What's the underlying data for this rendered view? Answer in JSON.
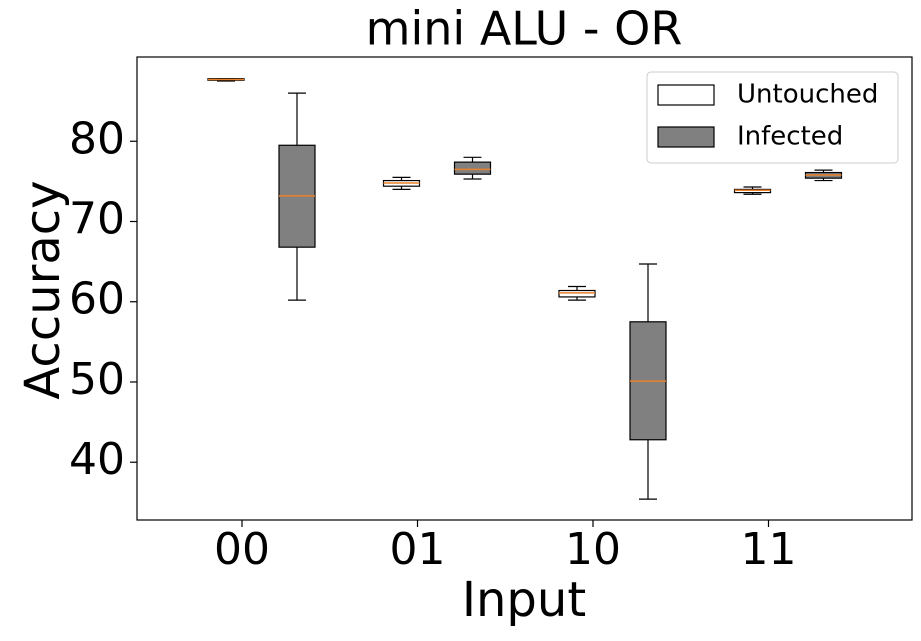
{
  "chart_data": {
    "type": "box",
    "title": "mini ALU - OR",
    "x_label": "Input",
    "y_label": "Accuracy",
    "categories": [
      "00",
      "01",
      "10",
      "11"
    ],
    "series": [
      {
        "name": "Untouched",
        "color": "#ffffff",
        "values": [
          {
            "min": 87.5,
            "q1": 87.6,
            "median": 87.7,
            "q3": 87.8,
            "max": 87.8
          },
          {
            "min": 74.0,
            "q1": 74.4,
            "median": 74.8,
            "q3": 75.1,
            "max": 75.5
          },
          {
            "min": 60.2,
            "q1": 60.6,
            "median": 61.1,
            "q3": 61.4,
            "max": 61.9
          },
          {
            "min": 73.4,
            "q1": 73.6,
            "median": 73.9,
            "q3": 74.0,
            "max": 74.3
          }
        ]
      },
      {
        "name": "Infected",
        "color": "#808080",
        "values": [
          {
            "min": 60.2,
            "q1": 66.8,
            "median": 73.2,
            "q3": 79.5,
            "max": 86.0
          },
          {
            "min": 75.3,
            "q1": 75.9,
            "median": 76.5,
            "q3": 77.4,
            "max": 78.0
          },
          {
            "min": 35.4,
            "q1": 42.8,
            "median": 50.1,
            "q3": 57.5,
            "max": 64.7
          },
          {
            "min": 75.1,
            "q1": 75.4,
            "median": 75.8,
            "q3": 76.1,
            "max": 76.4
          }
        ]
      }
    ],
    "median_color": "#e8812a",
    "ylim": [
      32.8,
      90.5
    ],
    "yticks": [
      40,
      50,
      60,
      70,
      80
    ],
    "legend": "upper right"
  }
}
